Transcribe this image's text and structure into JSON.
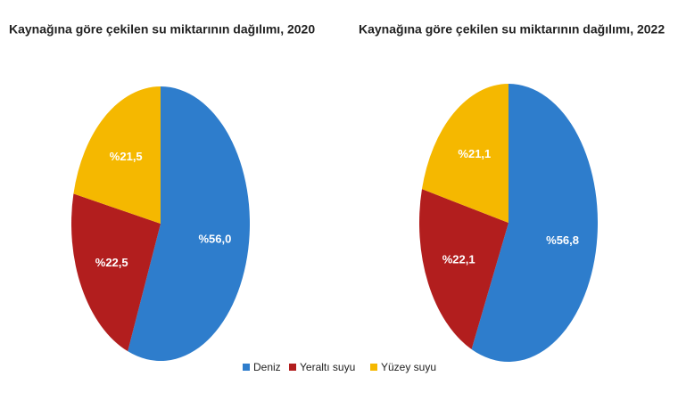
{
  "chart_data": [
    {
      "type": "pie",
      "title": "Kaynağına göre çekilen su miktarının dağılımı, 2020",
      "categories": [
        "Deniz",
        "Yeraltı suyu",
        "Yüzey suyu"
      ],
      "values": [
        56.0,
        22.5,
        21.5
      ],
      "value_labels": [
        "%56,0",
        "%22,5",
        "%21,5"
      ],
      "colors": [
        "#2e7dcc",
        "#b21e1e",
        "#f5b800"
      ]
    },
    {
      "type": "pie",
      "title": "Kaynağına göre çekilen su miktarının dağılımı, 2022",
      "categories": [
        "Deniz",
        "Yeraltı suyu",
        "Yüzey suyu"
      ],
      "values": [
        56.8,
        22.1,
        21.1
      ],
      "value_labels": [
        "%56,8",
        "%22,1",
        "%21,1"
      ],
      "colors": [
        "#2e7dcc",
        "#b21e1e",
        "#f5b800"
      ]
    }
  ]
}
